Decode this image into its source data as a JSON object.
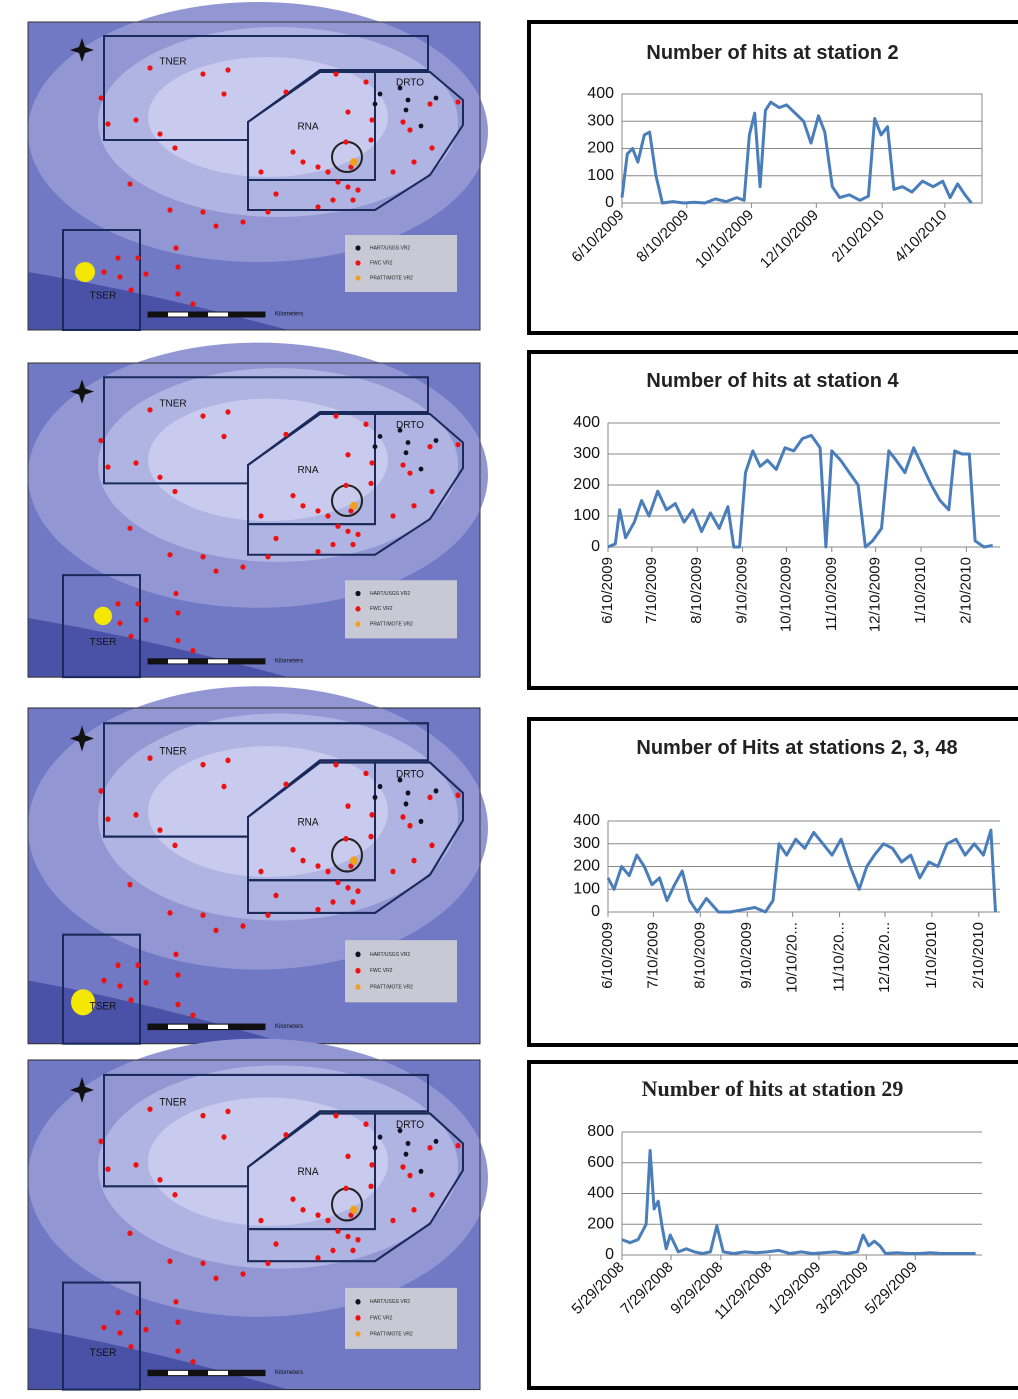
{
  "chart_data": [
    {
      "type": "line",
      "title": "Number of hits at station 2",
      "x": [
        "6/10/2009",
        "6/15/2009",
        "6/20/2009",
        "6/25/2009",
        "7/1/2009",
        "7/6/2009",
        "7/12/2009",
        "7/18/2009",
        "7/28/2009",
        "8/7/2009",
        "8/17/2009",
        "8/27/2009",
        "9/6/2009",
        "9/16/2009",
        "9/26/2009",
        "10/3/2009",
        "10/8/2009",
        "10/13/2009",
        "10/18/2009",
        "10/23/2009",
        "10/28/2009",
        "11/5/2009",
        "11/12/2009",
        "11/20/2009",
        "11/28/2009",
        "12/5/2009",
        "12/12/2009",
        "12/18/2009",
        "12/25/2009",
        "1/1/2010",
        "1/10/2010",
        "1/20/2010",
        "1/28/2010",
        "2/3/2010",
        "2/9/2010",
        "2/15/2010",
        "2/21/2010",
        "3/1/2010",
        "3/10/2010",
        "3/20/2010",
        "3/30/2010",
        "4/8/2010",
        "4/15/2010",
        "4/22/2010",
        "4/29/2010",
        "5/5/2010"
      ],
      "values": [
        20,
        180,
        200,
        150,
        250,
        260,
        100,
        0,
        5,
        0,
        3,
        0,
        15,
        5,
        20,
        10,
        250,
        330,
        60,
        340,
        370,
        350,
        360,
        330,
        300,
        220,
        320,
        260,
        60,
        20,
        30,
        10,
        25,
        310,
        250,
        280,
        50,
        60,
        40,
        80,
        60,
        80,
        20,
        70,
        30,
        0
      ],
      "color": "#4a7ebb",
      "xlim": [
        "6/10/2009",
        "5/15/2010"
      ],
      "xticks": [
        "6/10/2009",
        "8/10/2009",
        "10/10/2009",
        "12/10/2009",
        "2/10/2010",
        "4/10/2010"
      ],
      "ylim": [
        0,
        400
      ],
      "yticks": [
        0,
        100,
        200,
        300,
        400
      ],
      "grid": true
    },
    {
      "type": "line",
      "title": "Number of hits at station 4",
      "x": [
        "6/10/2009",
        "6/15/2009",
        "6/18/2009",
        "6/22/2009",
        "6/28/2009",
        "7/3/2009",
        "7/8/2009",
        "7/14/2009",
        "7/20/2009",
        "7/26/2009",
        "8/1/2009",
        "8/7/2009",
        "8/13/2009",
        "8/19/2009",
        "8/25/2009",
        "8/31/2009",
        "9/4/2009",
        "9/8/2009",
        "9/12/2009",
        "9/17/2009",
        "9/22/2009",
        "9/27/2009",
        "10/3/2009",
        "10/9/2009",
        "10/15/2009",
        "10/21/2009",
        "10/27/2009",
        "11/2/2009",
        "11/6/2009",
        "11/10/2009",
        "11/16/2009",
        "11/22/2009",
        "11/28/2009",
        "12/3/2009",
        "12/8/2009",
        "12/14/2009",
        "12/19/2009",
        "12/24/2009",
        "12/30/2009",
        "1/5/2010",
        "1/11/2010",
        "1/17/2010",
        "1/23/2010",
        "1/29/2010",
        "2/2/2010",
        "2/7/2010",
        "2/12/2010",
        "2/16/2010",
        "2/22/2010",
        "2/28/2010"
      ],
      "values": [
        0,
        10,
        120,
        30,
        80,
        150,
        100,
        180,
        120,
        140,
        80,
        120,
        50,
        110,
        60,
        130,
        0,
        0,
        240,
        310,
        260,
        280,
        250,
        320,
        310,
        350,
        360,
        320,
        0,
        310,
        280,
        240,
        200,
        0,
        20,
        60,
        310,
        280,
        240,
        320,
        260,
        200,
        150,
        120,
        310,
        300,
        300,
        20,
        0,
        5
      ],
      "color": "#4a7ebb",
      "xlim": [
        "6/10/2009",
        "3/5/2010"
      ],
      "xticks": [
        "6/10/2009",
        "7/10/2009",
        "8/10/2009",
        "9/10/2009",
        "10/10/2009",
        "11/10/2009",
        "12/10/2009",
        "1/10/2010",
        "2/10/2010"
      ],
      "ylim": [
        0,
        400
      ],
      "yticks": [
        0,
        100,
        200,
        300,
        400
      ],
      "grid": true
    },
    {
      "type": "line",
      "title": "Number of Hits at stations 2, 3, 48",
      "x": [
        "6/10/2009",
        "6/14/2009",
        "6/19/2009",
        "6/24/2009",
        "6/29/2009",
        "7/4/2009",
        "7/9/2009",
        "7/14/2009",
        "7/19/2009",
        "7/24/2009",
        "7/29/2009",
        "8/3/2009",
        "8/8/2009",
        "8/14/2009",
        "8/22/2009",
        "8/30/2009",
        "9/7/2009",
        "9/15/2009",
        "9/22/2009",
        "9/27/2009",
        "10/1/2009",
        "10/6/2009",
        "10/12/2009",
        "10/18/2009",
        "10/24/2009",
        "10/30/2009",
        "11/5/2009",
        "11/11/2009",
        "11/17/2009",
        "11/23/2009",
        "11/28/2009",
        "12/3/2009",
        "12/9/2009",
        "12/15/2009",
        "12/21/2009",
        "12/27/2009",
        "1/2/2010",
        "1/8/2010",
        "1/14/2010",
        "1/20/2010",
        "1/26/2010",
        "2/1/2010",
        "2/7/2010",
        "2/13/2010",
        "2/18/2010",
        "2/21/2010"
      ],
      "values": [
        150,
        100,
        200,
        160,
        250,
        200,
        120,
        150,
        50,
        120,
        180,
        50,
        0,
        60,
        0,
        0,
        10,
        20,
        0,
        50,
        300,
        250,
        320,
        280,
        350,
        300,
        250,
        320,
        200,
        100,
        200,
        250,
        300,
        280,
        220,
        250,
        150,
        220,
        200,
        300,
        320,
        250,
        300,
        250,
        360,
        0
      ],
      "color": "#4a7ebb",
      "xlim": [
        "6/10/2009",
        "2/24/2010"
      ],
      "xticks": [
        "6/10/2009",
        "7/10/2009",
        "8/10/2009",
        "9/10/2009",
        {
          "value": "10/10/2009",
          "label": "10/10/20..."
        },
        {
          "value": "11/10/2009",
          "label": "11/10/20..."
        },
        {
          "value": "12/10/2009",
          "label": "12/10/20..."
        },
        "1/10/2010",
        "2/10/2010"
      ],
      "ylim": [
        0,
        400
      ],
      "yticks": [
        0,
        100,
        200,
        300,
        400
      ],
      "grid": true
    },
    {
      "type": "line",
      "title": "Number of hits at station 29",
      "x": [
        "5/29/2008",
        "6/8/2008",
        "6/18/2008",
        "6/28/2008",
        "7/3/2008",
        "7/8/2008",
        "7/13/2008",
        "7/18/2008",
        "7/23/2008",
        "7/28/2008",
        "8/7/2008",
        "8/17/2008",
        "8/27/2008",
        "9/6/2008",
        "9/16/2008",
        "9/24/2008",
        "10/2/2008",
        "10/15/2008",
        "10/29/2008",
        "11/12/2008",
        "11/26/2008",
        "12/10/2008",
        "12/24/2008",
        "1/7/2009",
        "1/21/2009",
        "2/4/2009",
        "2/18/2009",
        "3/4/2009",
        "3/18/2009",
        "3/25/2009",
        "4/1/2009",
        "4/8/2009",
        "4/15/2009",
        "4/22/2009",
        "5/6/2009",
        "5/20/2009",
        "6/3/2009",
        "6/17/2009",
        "7/1/2009",
        "7/15/2009",
        "7/29/2009",
        "8/12/2009"
      ],
      "values": [
        100,
        80,
        100,
        200,
        680,
        300,
        350,
        180,
        40,
        130,
        20,
        40,
        20,
        10,
        20,
        190,
        20,
        10,
        20,
        15,
        20,
        30,
        10,
        20,
        10,
        15,
        20,
        10,
        20,
        130,
        60,
        90,
        60,
        10,
        15,
        10,
        10,
        15,
        10,
        10,
        10,
        10
      ],
      "color": "#4a7ebb",
      "xlim": [
        "5/29/2008",
        "8/20/2009"
      ],
      "xticks": [
        "5/29/2008",
        "7/29/2008",
        "9/29/2008",
        "11/29/2008",
        "1/29/2009",
        "3/29/2009",
        "5/29/2009"
      ],
      "ylim": [
        0,
        800
      ],
      "yticks": [
        0,
        200,
        400,
        600,
        800
      ],
      "grid": true
    }
  ],
  "maps": [
    {
      "tner": "TNER",
      "rna": "RNA",
      "drto": "DRTO",
      "tser": "TSER",
      "legend": [
        "HART/USGS VR2",
        "FWC VR2",
        "PRATT/MOTE VR2"
      ],
      "scale": "Kilometers"
    },
    {
      "tner": "TNER",
      "rna": "RNA",
      "drto": "DRTO",
      "tser": "TSER",
      "legend": [
        "HART/USGS VR2",
        "FWC VR2",
        "PRATT/MOTE VR2"
      ],
      "scale": "Kilometers"
    },
    {
      "tner": "TNER",
      "rna": "RNA",
      "drto": "DRTO",
      "tser": "TSER",
      "legend": [
        "HART/USGS VR2",
        "FWC VR2",
        "PRATT/MOTE VR2"
      ],
      "scale": "Kilometers"
    },
    {
      "tner": "TNER",
      "rna": "RNA",
      "drto": "DRTO",
      "tser": "TSER",
      "legend": [
        "HART/USGS VR2",
        "FWC VR2",
        "PRATT/MOTE VR2"
      ],
      "scale": "Kilometers"
    }
  ]
}
